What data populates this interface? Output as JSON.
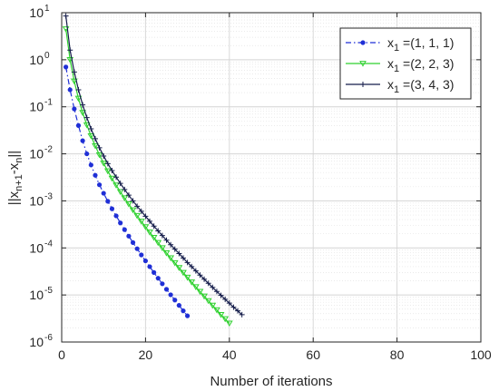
{
  "chart_data": {
    "type": "line",
    "title": "",
    "xlabel": "Number of iterations",
    "ylabel": "||x_{n+1}-x_n||",
    "xlim": [
      0,
      100
    ],
    "ylim": [
      1e-06,
      10
    ],
    "yscale": "log",
    "grid": true,
    "minor_grid": true,
    "legend_position": "top-right",
    "x_ticks": [
      0,
      20,
      40,
      60,
      80,
      100
    ],
    "y_ticks": [
      {
        "value": 1e-06,
        "base": "10",
        "exp": "-6"
      },
      {
        "value": 1e-05,
        "base": "10",
        "exp": "-5"
      },
      {
        "value": 0.0001,
        "base": "10",
        "exp": "-4"
      },
      {
        "value": 0.001,
        "base": "10",
        "exp": "-3"
      },
      {
        "value": 0.01,
        "base": "10",
        "exp": "-2"
      },
      {
        "value": 0.1,
        "base": "10",
        "exp": "-1"
      },
      {
        "value": 1,
        "base": "10",
        "exp": "0"
      },
      {
        "value": 10,
        "base": "10",
        "exp": "1"
      }
    ],
    "series": [
      {
        "name": "x1 =(1, 1, 1)",
        "label_parts": {
          "var": "x",
          "sub": "1",
          "rest": " =(1, 1, 1)"
        },
        "color": "#1f2fd6",
        "line_style": "dashdot",
        "marker": "asterisk",
        "points": [
          [
            1,
            0.7
          ],
          [
            2,
            0.23
          ],
          [
            3,
            0.09
          ],
          [
            4,
            0.04
          ],
          [
            5,
            0.019
          ],
          [
            6,
            0.01
          ],
          [
            7,
            0.0058
          ],
          [
            8,
            0.0035
          ],
          [
            9,
            0.0022
          ],
          [
            10,
            0.00145
          ],
          [
            11,
            0.00098
          ],
          [
            12,
            0.00068
          ],
          [
            13,
            0.00048
          ],
          [
            14,
            0.00034
          ],
          [
            15,
            0.000245
          ],
          [
            16,
            0.000178
          ],
          [
            17,
            0.00013
          ],
          [
            18,
            9.6e-05
          ],
          [
            19,
            7.1e-05
          ],
          [
            20,
            5.3e-05
          ],
          [
            21,
            4e-05
          ],
          [
            22,
            3e-05
          ],
          [
            23,
            2.27e-05
          ],
          [
            24,
            1.73e-05
          ],
          [
            25,
            1.32e-05
          ],
          [
            26,
            1.01e-05
          ],
          [
            27,
            7.8e-06
          ],
          [
            28,
            6e-06
          ],
          [
            29,
            4.6e-06
          ],
          [
            30,
            3.6e-06
          ]
        ]
      },
      {
        "name": "x1 =(2, 2, 3)",
        "label_parts": {
          "var": "x",
          "sub": "1",
          "rest": " =(2, 2, 3)"
        },
        "color": "#2ed12e",
        "line_style": "solid",
        "marker": "triangle-down",
        "points": [
          [
            1,
            4.5
          ],
          [
            2,
            1.0
          ],
          [
            3,
            0.35
          ],
          [
            4,
            0.15
          ],
          [
            5,
            0.075
          ],
          [
            6,
            0.041
          ],
          [
            7,
            0.024
          ],
          [
            8,
            0.0148
          ],
          [
            9,
            0.0095
          ],
          [
            10,
            0.0063
          ],
          [
            11,
            0.0043
          ],
          [
            12,
            0.003
          ],
          [
            13,
            0.00215
          ],
          [
            14,
            0.00156
          ],
          [
            15,
            0.00115
          ],
          [
            16,
            0.000855
          ],
          [
            17,
            0.00064
          ],
          [
            18,
            0.000483
          ],
          [
            19,
            0.000367
          ],
          [
            20,
            0.00028
          ],
          [
            21,
            0.000215
          ],
          [
            22,
            0.000166
          ],
          [
            23,
            0.000129
          ],
          [
            24,
            0.0001
          ],
          [
            25,
            7.8e-05
          ],
          [
            26,
            6.1e-05
          ],
          [
            27,
            4.8e-05
          ],
          [
            28,
            3.78e-05
          ],
          [
            29,
            2.98e-05
          ],
          [
            30,
            2.36e-05
          ],
          [
            31,
            1.87e-05
          ],
          [
            32,
            1.48e-05
          ],
          [
            33,
            1.18e-05
          ],
          [
            34,
            9.4e-06
          ],
          [
            35,
            7.5e-06
          ],
          [
            36,
            6e-06
          ],
          [
            37,
            4.8e-06
          ],
          [
            38,
            3.8e-06
          ],
          [
            39,
            3.1e-06
          ],
          [
            40,
            2.5e-06
          ]
        ]
      },
      {
        "name": "x1 =(3, 4, 3)",
        "label_parts": {
          "var": "x",
          "sub": "1",
          "rest": " =(3, 4, 3)"
        },
        "color": "#141c4a",
        "line_style": "solid",
        "marker": "plus",
        "points": [
          [
            1,
            8.5
          ],
          [
            2,
            1.6
          ],
          [
            3,
            0.55
          ],
          [
            4,
            0.23
          ],
          [
            5,
            0.11
          ],
          [
            6,
            0.059
          ],
          [
            7,
            0.034
          ],
          [
            8,
            0.021
          ],
          [
            9,
            0.0135
          ],
          [
            10,
            0.009
          ],
          [
            11,
            0.0062
          ],
          [
            12,
            0.0044
          ],
          [
            13,
            0.0032
          ],
          [
            14,
            0.00235
          ],
          [
            15,
            0.00175
          ],
          [
            16,
            0.00132
          ],
          [
            17,
            0.001
          ],
          [
            18,
            0.00077
          ],
          [
            19,
            0.0006
          ],
          [
            20,
            0.00047
          ],
          [
            21,
            0.00037
          ],
          [
            22,
            0.00029
          ],
          [
            23,
            0.00023
          ],
          [
            24,
            0.000183
          ],
          [
            25,
            0.000146
          ],
          [
            26,
            0.000117
          ],
          [
            27,
            9.4e-05
          ],
          [
            28,
            7.6e-05
          ],
          [
            29,
            6.1e-05
          ],
          [
            30,
            4.9e-05
          ],
          [
            31,
            4e-05
          ],
          [
            32,
            3.25e-05
          ],
          [
            33,
            2.65e-05
          ],
          [
            34,
            2.16e-05
          ],
          [
            35,
            1.77e-05
          ],
          [
            36,
            1.45e-05
          ],
          [
            37,
            1.19e-05
          ],
          [
            38,
            9.8e-06
          ],
          [
            39,
            8.1e-06
          ],
          [
            40,
            6.7e-06
          ],
          [
            41,
            5.5e-06
          ],
          [
            42,
            4.6e-06
          ],
          [
            43,
            3.8e-06
          ]
        ]
      }
    ]
  }
}
